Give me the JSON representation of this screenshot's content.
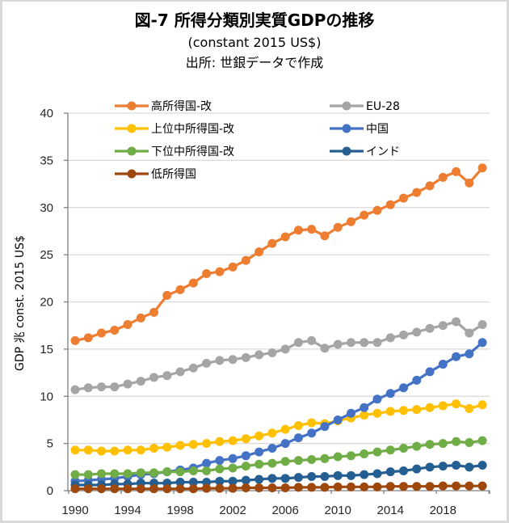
{
  "chart_data": {
    "type": "line",
    "title": "図-7  所得分類別実質GDPの推移",
    "subtitle": "(constant 2015 US$)",
    "source": "出所: 世銀データで作成",
    "xlabel": "",
    "ylabel": "GDP  兆 const. 2015 US$",
    "ylim": [
      0,
      40
    ],
    "yticks": [
      "0",
      "5",
      "10",
      "15",
      "20",
      "25",
      "30",
      "35",
      "40"
    ],
    "ytick_values": [
      0,
      5,
      10,
      15,
      20,
      25,
      30,
      35,
      40
    ],
    "xticks": [
      "1990",
      "1994",
      "1998",
      "2002",
      "2006",
      "2010",
      "2014",
      "2018"
    ],
    "xtick_values": [
      1990,
      1994,
      1998,
      2002,
      2006,
      2010,
      2014,
      2018
    ],
    "grid": true,
    "legend_position": "top",
    "x": [
      1990,
      1991,
      1992,
      1993,
      1994,
      1995,
      1996,
      1997,
      1998,
      1999,
      2000,
      2001,
      2002,
      2003,
      2004,
      2005,
      2006,
      2007,
      2008,
      2009,
      2010,
      2011,
      2012,
      2013,
      2014,
      2015,
      2016,
      2017,
      2018,
      2019,
      2020,
      2021
    ],
    "series": [
      {
        "name": "高所得国-改",
        "color": "#ed7d31",
        "values": [
          15.9,
          16.2,
          16.7,
          17.0,
          17.6,
          18.3,
          18.9,
          20.7,
          21.3,
          22.0,
          23.0,
          23.2,
          23.7,
          24.4,
          25.3,
          26.2,
          26.9,
          27.6,
          27.7,
          27.0,
          27.9,
          28.5,
          29.2,
          29.7,
          30.3,
          31.0,
          31.6,
          32.3,
          33.2,
          33.8,
          32.6,
          34.2
        ]
      },
      {
        "name": "EU-28",
        "color": "#a5a5a5",
        "values": [
          10.7,
          10.9,
          11.0,
          11.0,
          11.3,
          11.6,
          12.0,
          12.2,
          12.6,
          13.0,
          13.5,
          13.8,
          13.9,
          14.1,
          14.4,
          14.6,
          15.0,
          15.7,
          15.9,
          15.1,
          15.5,
          15.7,
          15.7,
          15.7,
          16.2,
          16.5,
          16.8,
          17.2,
          17.5,
          17.9,
          16.7,
          17.6
        ]
      },
      {
        "name": "上位中所得国-改",
        "color": "#ffc000",
        "values": [
          4.3,
          4.3,
          4.2,
          4.2,
          4.3,
          4.3,
          4.5,
          4.6,
          4.8,
          4.9,
          5.0,
          5.2,
          5.3,
          5.5,
          5.8,
          6.1,
          6.5,
          6.9,
          7.2,
          7.1,
          7.4,
          7.7,
          8.0,
          8.2,
          8.4,
          8.5,
          8.6,
          8.8,
          9.0,
          9.2,
          8.7,
          9.1
        ]
      },
      {
        "name": "中国",
        "color": "#4472c4",
        "values": [
          1.0,
          1.1,
          1.2,
          1.3,
          1.5,
          1.7,
          1.8,
          2.0,
          2.2,
          2.4,
          2.9,
          3.2,
          3.4,
          3.7,
          4.1,
          4.5,
          5.0,
          5.6,
          6.1,
          6.8,
          7.5,
          8.2,
          8.8,
          9.7,
          10.3,
          10.9,
          11.7,
          12.6,
          13.4,
          14.2,
          14.5,
          15.7
        ]
      },
      {
        "name": "下位中所得国-改",
        "color": "#70ad47",
        "values": [
          1.7,
          1.7,
          1.8,
          1.8,
          1.8,
          1.9,
          1.9,
          2.0,
          2.0,
          2.1,
          2.1,
          2.3,
          2.4,
          2.6,
          2.8,
          2.9,
          3.1,
          3.2,
          3.3,
          3.4,
          3.6,
          3.7,
          3.9,
          4.1,
          4.3,
          4.5,
          4.7,
          4.9,
          5.0,
          5.2,
          5.1,
          5.3
        ]
      },
      {
        "name": "インド",
        "color": "#255e91",
        "values": [
          0.6,
          0.6,
          0.6,
          0.7,
          0.7,
          0.8,
          0.8,
          0.8,
          0.9,
          0.9,
          0.9,
          1.0,
          1.0,
          1.1,
          1.2,
          1.3,
          1.3,
          1.4,
          1.5,
          1.5,
          1.6,
          1.6,
          1.7,
          1.8,
          2.0,
          2.1,
          2.3,
          2.5,
          2.6,
          2.7,
          2.5,
          2.7
        ]
      },
      {
        "name": "低所得国",
        "color": "#9e480e",
        "values": [
          0.2,
          0.2,
          0.2,
          0.2,
          0.2,
          0.2,
          0.2,
          0.2,
          0.2,
          0.2,
          0.25,
          0.25,
          0.25,
          0.3,
          0.3,
          0.3,
          0.3,
          0.35,
          0.35,
          0.35,
          0.4,
          0.4,
          0.4,
          0.4,
          0.45,
          0.45,
          0.45,
          0.45,
          0.5,
          0.5,
          0.5,
          0.5
        ]
      }
    ],
    "legend_order": [
      0,
      1,
      2,
      3,
      4,
      5,
      6
    ]
  },
  "colors": {
    "gridline": "#d9d9d9",
    "axis": "#7f7f7f",
    "frame": "#d9d9d9"
  }
}
